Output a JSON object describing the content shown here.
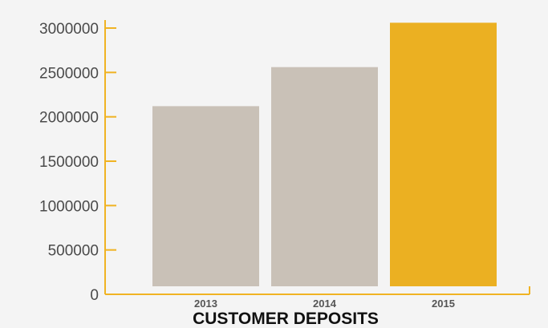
{
  "chart_data": {
    "type": "bar",
    "title": "CUSTOMER DEPOSITS",
    "categories": [
      "2013",
      "2014",
      "2015"
    ],
    "values": [
      2120000,
      2560000,
      3060000
    ],
    "ylim": [
      0,
      3000000
    ],
    "yticks": [
      "0",
      "500000",
      "1000000",
      "1500000",
      "2000000",
      "2500000",
      "3000000"
    ],
    "xlabel": "",
    "ylabel": "",
    "grid": false,
    "legend": "none"
  },
  "colors": {
    "axis": "#f0b323",
    "bar_default": "#c9c1b7",
    "bar_highlight": "#ebb022",
    "background": "#f4f4f4"
  }
}
